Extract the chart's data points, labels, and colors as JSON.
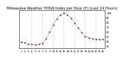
{
  "title": "Milwaukee Weather THSW Index per Hour (F) (Last 24 Hours)",
  "hours": [
    1,
    2,
    3,
    4,
    5,
    6,
    7,
    8,
    9,
    10,
    11,
    12,
    13,
    14,
    15,
    16,
    17,
    18,
    19,
    20,
    21,
    22,
    23,
    24
  ],
  "values": [
    38,
    36,
    34,
    33,
    32,
    33,
    35,
    45,
    60,
    74,
    87,
    95,
    99,
    96,
    88,
    78,
    68,
    58,
    50,
    47,
    45,
    44,
    44,
    43
  ],
  "ylim": [
    25,
    105
  ],
  "yticks": [
    30,
    40,
    50,
    60,
    70,
    80,
    90,
    100
  ],
  "ytick_labels": [
    "30",
    "40",
    "50",
    "60",
    "70",
    "80",
    "90",
    "100"
  ],
  "line_color": "#ff0000",
  "marker_color": "#000000",
  "bg_color": "#ffffff",
  "plot_bg": "#ffffff",
  "grid_color": "#888888",
  "title_fontsize": 3.8,
  "tick_fontsize": 2.8,
  "line_width": 0.6,
  "marker_size": 1.2,
  "vgrid_positions": [
    4,
    7,
    10,
    13,
    16,
    19,
    22
  ]
}
